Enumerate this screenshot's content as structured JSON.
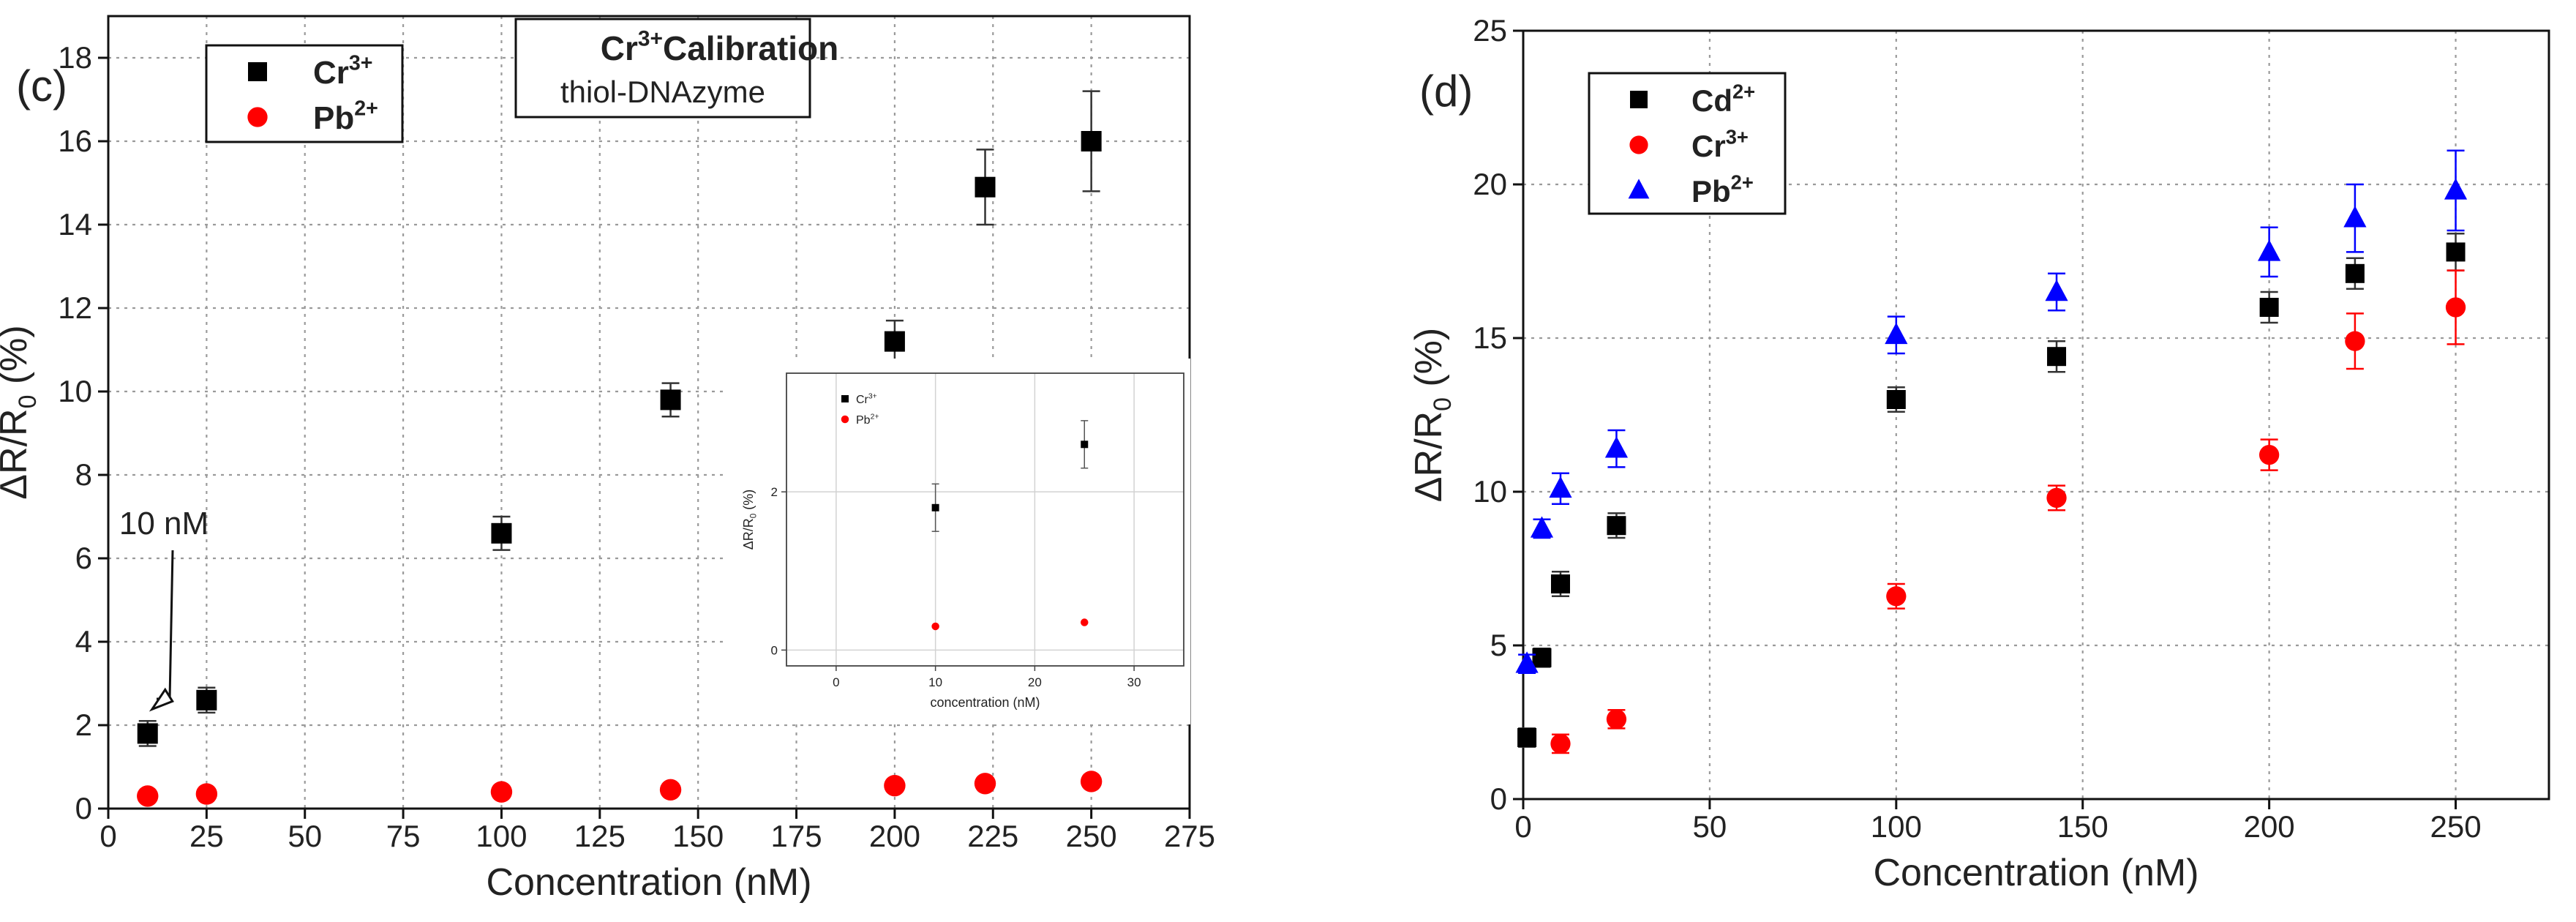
{
  "chart_data": [
    {
      "panel_label": "(c)",
      "type": "scatter",
      "title": "Cr3+ Calibration",
      "subtitle": "thiol-DNAzyme",
      "xlabel": "Concentration (nM)",
      "ylabel": "ΔR/R0 (%)",
      "xlim": [
        0,
        275
      ],
      "ylim": [
        0,
        19
      ],
      "xticks": [
        0,
        25,
        50,
        75,
        100,
        125,
        150,
        175,
        200,
        225,
        250,
        275
      ],
      "yticks": [
        0,
        2,
        4,
        6,
        8,
        10,
        12,
        14,
        16,
        18
      ],
      "grid": true,
      "legend_position": "top-left",
      "annotation": {
        "text": "10 nM",
        "x": 10,
        "y": 1.8
      },
      "series": [
        {
          "name": "Cr3+",
          "marker": "square",
          "color": "#000000",
          "x": [
            10,
            25,
            100,
            143,
            200,
            223,
            250
          ],
          "y": [
            1.8,
            2.6,
            6.6,
            9.8,
            11.2,
            14.9,
            16.0
          ],
          "err": [
            0.3,
            0.3,
            0.4,
            0.4,
            0.5,
            0.9,
            1.2
          ]
        },
        {
          "name": "Pb2+",
          "marker": "circle",
          "color": "#ff0000",
          "x": [
            10,
            25,
            100,
            143,
            200,
            223,
            250
          ],
          "y": [
            0.3,
            0.35,
            0.4,
            0.45,
            0.55,
            0.6,
            0.65
          ],
          "err": [
            0,
            0,
            0,
            0,
            0,
            0,
            0
          ]
        }
      ],
      "inset": {
        "type": "scatter",
        "xlabel": "concentration (nM)",
        "ylabel": "ΔR/R0 (%)",
        "xlim": [
          -5,
          35
        ],
        "ylim": [
          -0.2,
          3.5
        ],
        "xticks": [
          0,
          10,
          20,
          30
        ],
        "yticks": [
          0,
          2
        ],
        "legend_position": "top-left",
        "series": [
          {
            "name": "Cr3+",
            "marker": "square",
            "color": "#000000",
            "x": [
              10,
              25
            ],
            "y": [
              1.8,
              2.6
            ],
            "err": [
              0.3,
              0.3
            ]
          },
          {
            "name": "Pb2+",
            "marker": "circle",
            "color": "#ff0000",
            "x": [
              10,
              25
            ],
            "y": [
              0.3,
              0.35
            ],
            "err": [
              0,
              0
            ]
          }
        ]
      }
    },
    {
      "panel_label": "(d)",
      "type": "scatter",
      "title": "",
      "xlabel": "Concentration (nM)",
      "ylabel": "ΔR/R0 (%)",
      "xlim": [
        0,
        275
      ],
      "ylim": [
        0,
        25
      ],
      "xticks": [
        0,
        50,
        100,
        150,
        200,
        250
      ],
      "yticks": [
        0,
        5,
        10,
        15,
        20,
        25
      ],
      "grid": true,
      "legend_position": "top-left",
      "series": [
        {
          "name": "Cd2+",
          "marker": "square",
          "color": "#000000",
          "x": [
            1,
            5,
            10,
            25,
            100,
            143,
            200,
            223,
            250
          ],
          "y": [
            2.0,
            4.6,
            7.0,
            8.9,
            13.0,
            14.4,
            16.0,
            17.1,
            17.8
          ],
          "err": [
            0.3,
            0.3,
            0.4,
            0.4,
            0.4,
            0.5,
            0.5,
            0.5,
            0.6
          ]
        },
        {
          "name": "Cr3+",
          "marker": "circle",
          "color": "#ff0000",
          "x": [
            10,
            25,
            100,
            143,
            200,
            223,
            250
          ],
          "y": [
            1.8,
            2.6,
            6.6,
            9.8,
            11.2,
            14.9,
            16.0
          ],
          "err": [
            0.3,
            0.3,
            0.4,
            0.4,
            0.5,
            0.9,
            1.2
          ]
        },
        {
          "name": "Pb2+",
          "marker": "triangle",
          "color": "#0000ff",
          "x": [
            1,
            5,
            10,
            25,
            100,
            143,
            200,
            223,
            250
          ],
          "y": [
            4.4,
            8.8,
            10.1,
            11.4,
            15.1,
            16.5,
            17.8,
            18.9,
            19.8
          ],
          "err": [
            0.3,
            0.3,
            0.5,
            0.6,
            0.6,
            0.6,
            0.8,
            1.1,
            1.3
          ]
        }
      ]
    }
  ]
}
